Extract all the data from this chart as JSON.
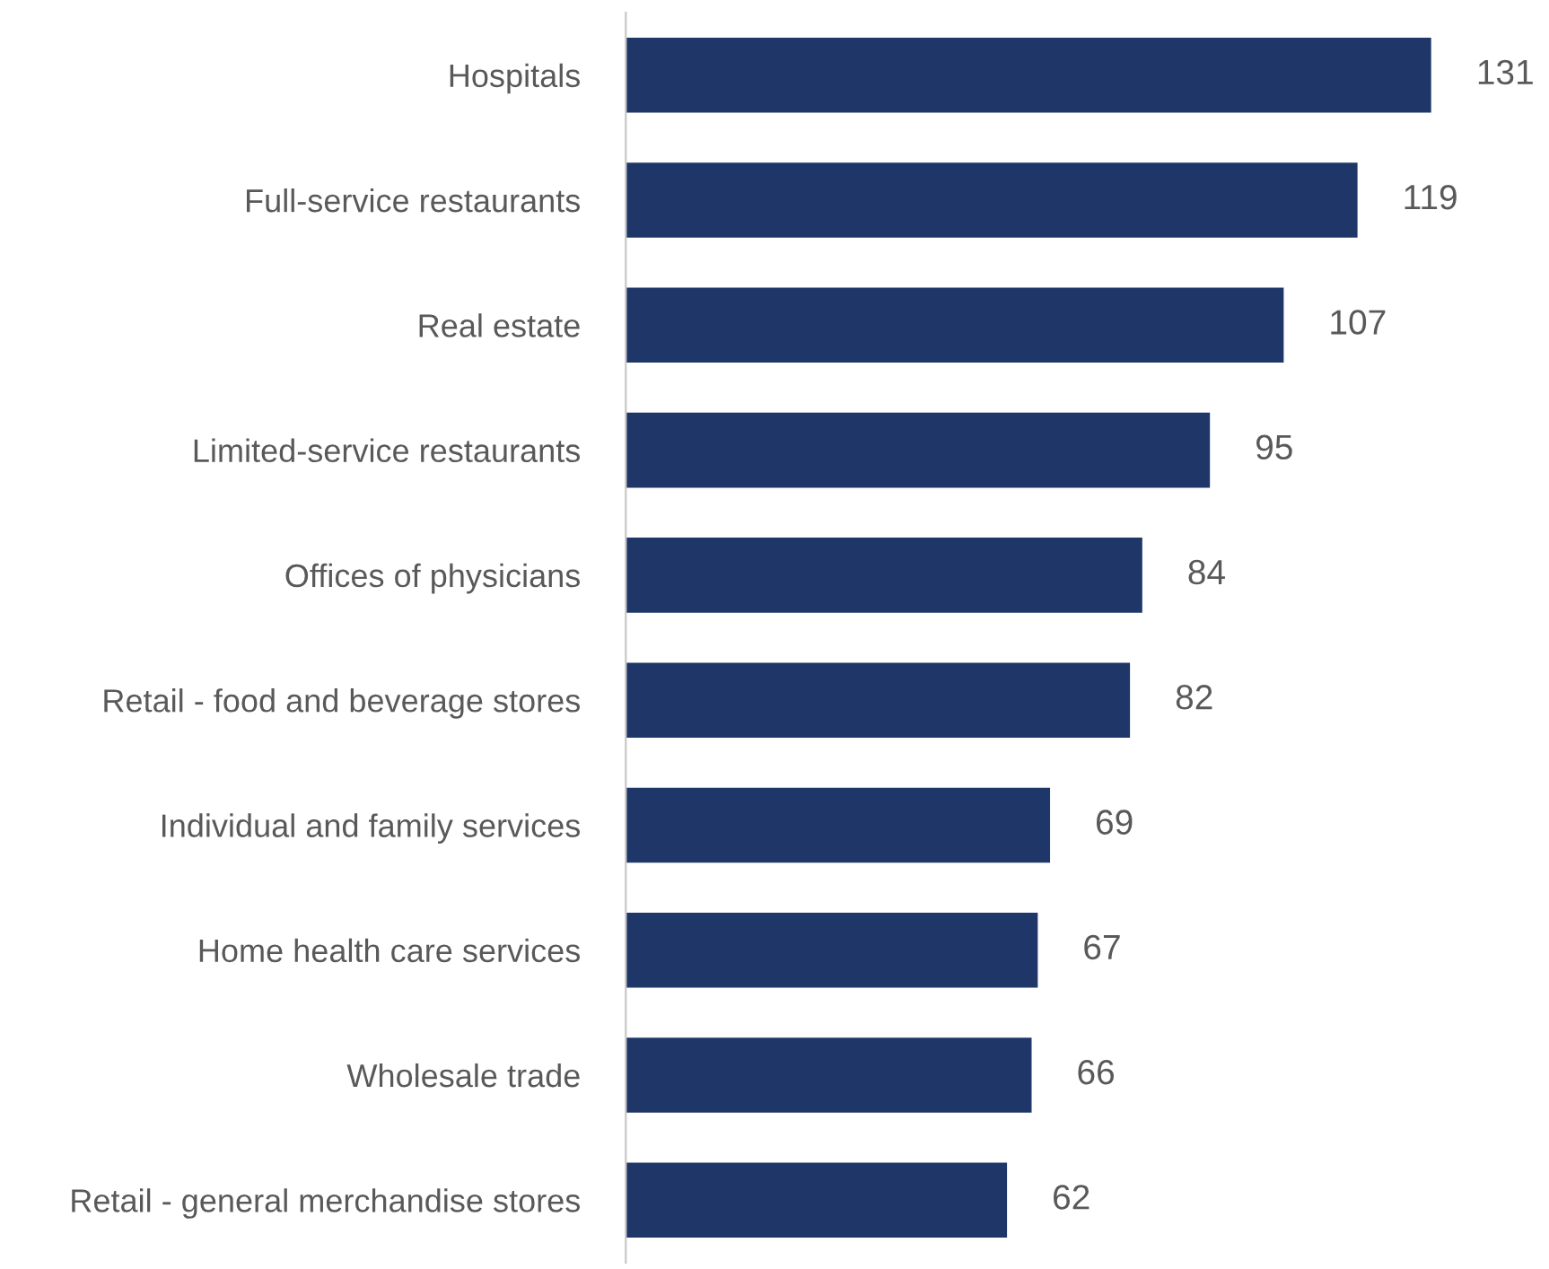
{
  "chart_data": {
    "type": "bar",
    "orientation": "horizontal",
    "categories": [
      "Hospitals",
      "Full-service restaurants",
      "Real estate",
      "Limited-service restaurants",
      "Offices of physicians",
      "Retail - food and beverage stores",
      "Individual and family services",
      "Home health care services",
      "Wholesale trade",
      "Retail - general merchandise stores"
    ],
    "values": [
      131,
      119,
      107,
      95,
      84,
      82,
      69,
      67,
      66,
      62
    ],
    "color": "#1f3768",
    "data_labels": true,
    "grid": false,
    "legend": false,
    "tick_labels": "y"
  }
}
